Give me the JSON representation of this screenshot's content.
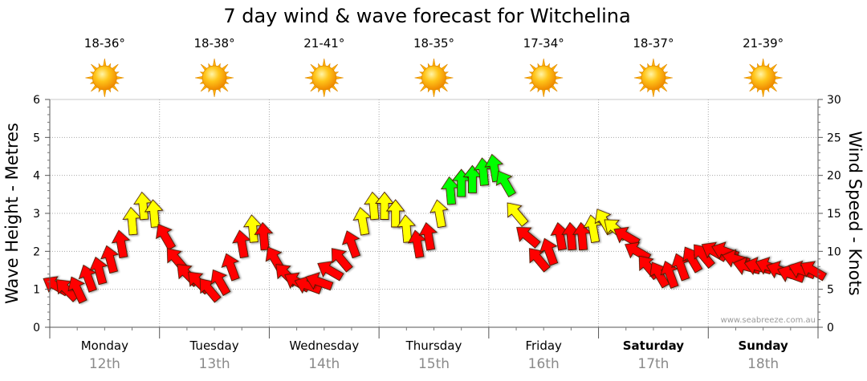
{
  "chart_data": {
    "type": "line",
    "title": "7 day wind & wave forecast for Witchelina",
    "ylabel_left": "Wave Height - Metres",
    "ylabel_right": "Wind Speed - Knots",
    "ylim_left": [
      0,
      6
    ],
    "ylim_right": [
      0,
      30
    ],
    "yticks_left": [
      "0",
      "1",
      "2",
      "3",
      "4",
      "5",
      "6"
    ],
    "yticks_right": [
      "0",
      "5",
      "10",
      "15",
      "20",
      "25",
      "30"
    ],
    "grid": true,
    "watermark": "www.seabreeze.com.au",
    "days": [
      {
        "name": "Monday",
        "date": "12th",
        "temp": "18-36°",
        "weekend": false
      },
      {
        "name": "Tuesday",
        "date": "13th",
        "temp": "18-38°",
        "weekend": false
      },
      {
        "name": "Wednesday",
        "date": "14th",
        "temp": "21-41°",
        "weekend": false
      },
      {
        "name": "Thursday",
        "date": "15th",
        "temp": "18-35°",
        "weekend": false
      },
      {
        "name": "Friday",
        "date": "16th",
        "temp": "17-34°",
        "weekend": false
      },
      {
        "name": "Saturday",
        "date": "17th",
        "temp": "18-37°",
        "weekend": true
      },
      {
        "name": "Sunday",
        "date": "18th",
        "temp": "21-39°",
        "weekend": true
      }
    ],
    "weather_icon": "sun-icon",
    "wind_series": {
      "name": "Wind Speed (knots)",
      "x_days": [
        0.05,
        0.15,
        0.25,
        0.35,
        0.45,
        0.55,
        0.65,
        0.75,
        0.85,
        0.95,
        1.05,
        1.15,
        1.25,
        1.35,
        1.45,
        1.55,
        1.65,
        1.75,
        1.85,
        1.95,
        2.05,
        2.15,
        2.25,
        2.35,
        2.45,
        2.55,
        2.65,
        2.75,
        2.85,
        2.95,
        3.05,
        3.15,
        3.25,
        3.35,
        3.45,
        3.55,
        3.65,
        3.75,
        3.85,
        3.95,
        4.05,
        4.15,
        4.25,
        4.35,
        4.45,
        4.55,
        4.65,
        4.75,
        4.85,
        4.95,
        5.05,
        5.15,
        5.25,
        5.35,
        5.45,
        5.55,
        5.65,
        5.75,
        5.85,
        5.95,
        6.05,
        6.15,
        6.25,
        6.35,
        6.45,
        6.55,
        6.65,
        6.75,
        6.85,
        6.95
      ],
      "values": [
        5.5,
        5,
        5,
        6.5,
        7.5,
        9,
        11,
        14,
        16,
        15,
        12,
        9,
        7,
        6,
        5,
        6,
        8,
        11,
        13,
        12,
        9,
        7,
        6,
        5.5,
        6,
        7.5,
        9,
        11,
        14,
        16,
        16,
        15,
        13,
        11,
        12,
        15,
        18,
        19,
        19.5,
        20.5,
        21,
        19,
        15,
        12,
        9,
        10,
        12,
        12,
        12,
        13,
        14,
        13,
        12,
        10,
        8,
        7,
        7,
        8,
        9,
        9.5,
        10,
        10,
        9,
        8,
        8,
        8,
        7.5,
        7,
        7.5,
        7.5
      ],
      "directions_deg": [
        300,
        315,
        335,
        340,
        345,
        345,
        350,
        355,
        355,
        355,
        330,
        320,
        315,
        315,
        320,
        330,
        340,
        350,
        355,
        355,
        330,
        315,
        300,
        290,
        290,
        300,
        320,
        340,
        350,
        355,
        360,
        360,
        355,
        350,
        350,
        350,
        355,
        360,
        360,
        355,
        350,
        330,
        320,
        310,
        320,
        340,
        350,
        355,
        355,
        350,
        330,
        310,
        300,
        300,
        320,
        330,
        340,
        340,
        330,
        320,
        300,
        290,
        285,
        285,
        285,
        290,
        290,
        290,
        290,
        300
      ]
    },
    "speed_color_bands": [
      {
        "max_knots": 12,
        "color": "#ff0000"
      },
      {
        "max_knots": 17,
        "color": "#ffff00"
      },
      {
        "max_knots": 30,
        "color": "#00ff00"
      }
    ]
  }
}
